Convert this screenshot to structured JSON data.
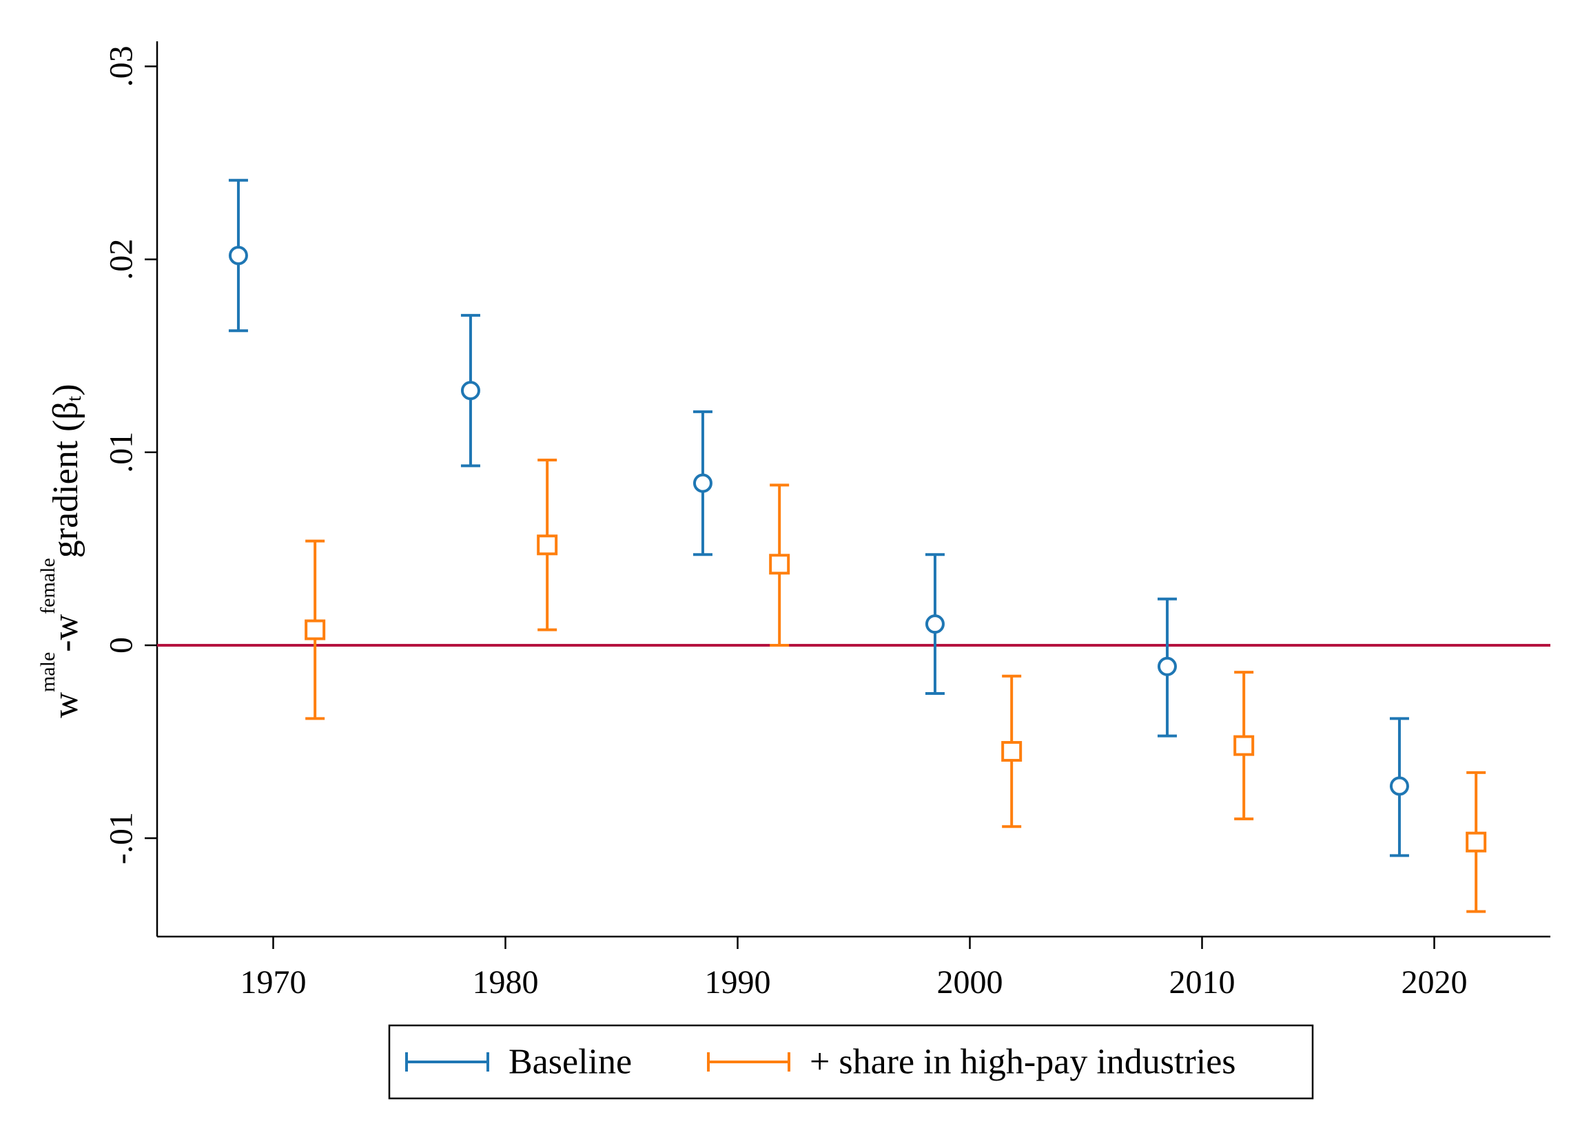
{
  "chart_data": {
    "type": "scatter",
    "title": "",
    "xlabel": "",
    "ylabel": {
      "w1": "w",
      "sup1": "male",
      "mid": "-w",
      "sup2": "female",
      "rest": "gradient (β",
      "sub": "t",
      "end": ")"
    },
    "xlim": [
      1965,
      2025
    ],
    "ylim": [
      -0.0151,
      0.0313
    ],
    "x_ticks": [
      1970,
      1980,
      1990,
      2000,
      2010,
      2020
    ],
    "x_tick_labels": [
      "1970",
      "1980",
      "1990",
      "2000",
      "2010",
      "2020"
    ],
    "y_ticks": [
      -0.01,
      0,
      0.01,
      0.02,
      0.03
    ],
    "y_tick_labels": [
      "-.01",
      "0",
      ".01",
      ".02",
      ".03"
    ],
    "reference_line": {
      "y": 0,
      "color": "#b5123f"
    },
    "grid": false,
    "legend_position": "bottom",
    "series": [
      {
        "name": "Baseline",
        "marker": "circle",
        "color": "#1f77b4",
        "x": [
          1968.5,
          1978.5,
          1988.5,
          1998.5,
          2008.5,
          2018.5
        ],
        "y": [
          0.0202,
          0.0132,
          0.0084,
          0.0011,
          -0.0011,
          -0.0073
        ],
        "ci_low": [
          0.0163,
          0.0093,
          0.0047,
          -0.0025,
          -0.0047,
          -0.0109
        ],
        "ci_high": [
          0.0241,
          0.0171,
          0.0121,
          0.0047,
          0.0024,
          -0.0038
        ]
      },
      {
        "name": "+ share in high-pay industries",
        "marker": "square",
        "color": "#ff7f0e",
        "x": [
          1971.8,
          1981.8,
          1991.8,
          2001.8,
          2011.8,
          2021.8
        ],
        "y": [
          0.0008,
          0.0052,
          0.0042,
          -0.0055,
          -0.0052,
          -0.0102
        ],
        "ci_low": [
          -0.0038,
          0.0008,
          0.0,
          -0.0094,
          -0.009,
          -0.0138
        ],
        "ci_high": [
          0.0054,
          0.0096,
          0.0083,
          -0.0016,
          -0.0014,
          -0.0066
        ]
      }
    ]
  }
}
